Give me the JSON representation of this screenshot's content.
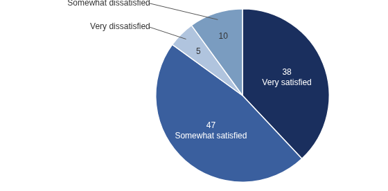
{
  "chart_data": {
    "type": "pie",
    "categories": [
      "Very satisfied",
      "Somewhat satisfied",
      "Very dissatisfied",
      "Somewhat dissatisfied"
    ],
    "values": [
      38,
      47,
      5,
      10
    ],
    "colors": [
      "#1a2f5e",
      "#3a5f9e",
      "#b0c4de",
      "#7a9cc0"
    ],
    "data_labels": true
  }
}
